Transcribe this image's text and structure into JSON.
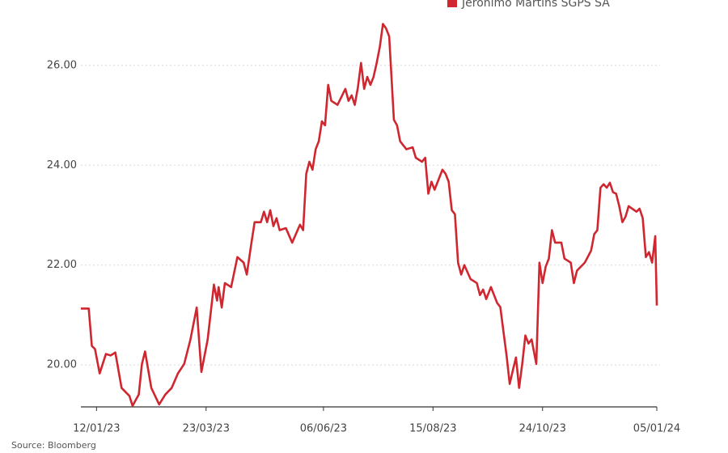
{
  "chart_data": {
    "type": "line",
    "source": "Source: Bloomberg",
    "x": [
      "2023-01-02",
      "2023-01-07",
      "2023-01-09",
      "2023-01-11",
      "2023-01-14",
      "2023-01-18",
      "2023-01-21",
      "2023-01-24",
      "2023-01-28",
      "2023-02-02",
      "2023-02-04",
      "2023-02-08",
      "2023-02-10",
      "2023-02-12",
      "2023-02-16",
      "2023-02-21",
      "2023-02-25",
      "2023-03-01",
      "2023-03-05",
      "2023-03-09",
      "2023-03-13",
      "2023-03-17",
      "2023-03-20",
      "2023-03-24",
      "2023-03-28",
      "2023-03-30",
      "2023-03-31",
      "2023-04-02",
      "2023-04-04",
      "2023-04-08",
      "2023-04-12",
      "2023-04-16",
      "2023-04-18",
      "2023-04-21",
      "2023-04-23",
      "2023-04-27",
      "2023-04-29",
      "2023-05-01",
      "2023-05-03",
      "2023-05-05",
      "2023-05-07",
      "2023-05-09",
      "2023-05-13",
      "2023-05-17",
      "2023-05-22",
      "2023-05-24",
      "2023-05-26",
      "2023-05-28",
      "2023-05-30",
      "2023-06-01",
      "2023-06-03",
      "2023-06-05",
      "2023-06-07",
      "2023-06-09",
      "2023-06-11",
      "2023-06-15",
      "2023-06-20",
      "2023-06-22",
      "2023-06-24",
      "2023-06-26",
      "2023-06-28",
      "2023-06-30",
      "2023-07-02",
      "2023-07-04",
      "2023-07-06",
      "2023-07-08",
      "2023-07-10",
      "2023-07-12",
      "2023-07-14",
      "2023-07-16",
      "2023-07-18",
      "2023-07-21",
      "2023-07-23",
      "2023-07-25",
      "2023-07-29",
      "2023-08-02",
      "2023-08-04",
      "2023-08-08",
      "2023-08-10",
      "2023-08-12",
      "2023-08-14",
      "2023-08-16",
      "2023-08-21",
      "2023-08-23",
      "2023-08-25",
      "2023-08-27",
      "2023-08-29",
      "2023-08-31",
      "2023-09-02",
      "2023-09-04",
      "2023-09-08",
      "2023-09-12",
      "2023-09-14",
      "2023-09-16",
      "2023-09-18",
      "2023-09-21",
      "2023-09-25",
      "2023-09-27",
      "2023-09-29",
      "2023-10-01",
      "2023-10-03",
      "2023-10-05",
      "2023-10-07",
      "2023-10-09",
      "2023-10-11",
      "2023-10-13",
      "2023-10-15",
      "2023-10-17",
      "2023-10-20",
      "2023-10-22",
      "2023-10-24",
      "2023-10-26",
      "2023-10-28",
      "2023-10-30",
      "2023-11-01",
      "2023-11-05",
      "2023-11-07",
      "2023-11-11",
      "2023-11-13",
      "2023-11-15",
      "2023-11-20",
      "2023-11-24",
      "2023-11-26",
      "2023-11-28",
      "2023-11-30",
      "2023-12-02",
      "2023-12-04",
      "2023-12-06",
      "2023-12-08",
      "2023-12-10",
      "2023-12-12",
      "2023-12-14",
      "2023-12-16",
      "2023-12-18",
      "2023-12-23",
      "2023-12-25",
      "2023-12-27",
      "2023-12-29",
      "2023-12-31",
      "2024-01-02",
      "2024-01-04",
      "2024-01-05"
    ],
    "series": [
      {
        "name": "Jerónimo Martins SGPS SA",
        "color": "#d0262f",
        "values": [
          21.13,
          21.13,
          20.38,
          20.32,
          19.83,
          20.22,
          20.19,
          20.25,
          19.54,
          19.38,
          19.18,
          19.41,
          20.02,
          20.27,
          19.54,
          19.21,
          19.41,
          19.54,
          19.83,
          20.02,
          20.51,
          21.15,
          19.86,
          20.51,
          21.61,
          21.29,
          21.56,
          21.15,
          21.64,
          21.56,
          22.16,
          22.05,
          21.81,
          22.45,
          22.86,
          22.86,
          23.07,
          22.86,
          23.1,
          22.78,
          22.94,
          22.7,
          22.74,
          22.45,
          22.81,
          22.7,
          23.83,
          24.07,
          23.91,
          24.32,
          24.48,
          24.88,
          24.8,
          25.61,
          25.29,
          25.21,
          25.53,
          25.29,
          25.4,
          25.21,
          25.56,
          26.05,
          25.53,
          25.77,
          25.61,
          25.77,
          26.05,
          26.37,
          26.83,
          26.74,
          26.58,
          24.91,
          24.8,
          24.48,
          24.32,
          24.36,
          24.15,
          24.07,
          24.15,
          23.43,
          23.67,
          23.51,
          23.91,
          23.83,
          23.67,
          23.1,
          23.02,
          22.05,
          21.81,
          22.0,
          21.72,
          21.64,
          21.4,
          21.51,
          21.32,
          21.56,
          21.24,
          21.16,
          20.67,
          20.19,
          19.62,
          19.89,
          20.15,
          19.54,
          20.02,
          20.59,
          20.43,
          20.51,
          20.02,
          22.05,
          21.64,
          21.97,
          22.13,
          22.7,
          22.45,
          22.45,
          22.13,
          22.05,
          21.64,
          21.89,
          22.05,
          22.29,
          22.62,
          22.7,
          23.55,
          23.62,
          23.55,
          23.65,
          23.46,
          23.43,
          23.18,
          22.86,
          22.97,
          23.18,
          23.07,
          23.13,
          22.94,
          22.16,
          22.26,
          22.05,
          22.58,
          21.19
        ]
      }
    ],
    "xlim": [
      "2023-01-02",
      "2024-01-05"
    ],
    "xticks": [
      {
        "value": "2023-01-12",
        "label": "12/01/23"
      },
      {
        "value": "2023-03-23",
        "label": "23/03/23"
      },
      {
        "value": "2023-06-06",
        "label": "06/06/23"
      },
      {
        "value": "2023-08-15",
        "label": "15/08/23"
      },
      {
        "value": "2023-10-24",
        "label": "24/10/23"
      },
      {
        "value": "2024-01-05",
        "label": "05/01/24"
      }
    ],
    "ylim": [
      19.16,
      27.31
    ],
    "yticks": [
      {
        "value": 20,
        "label": "20.00"
      },
      {
        "value": 22,
        "label": "22.00"
      },
      {
        "value": 24,
        "label": "24.00"
      },
      {
        "value": 26,
        "label": "26.00"
      }
    ],
    "grid": true,
    "legend": "top-right"
  }
}
